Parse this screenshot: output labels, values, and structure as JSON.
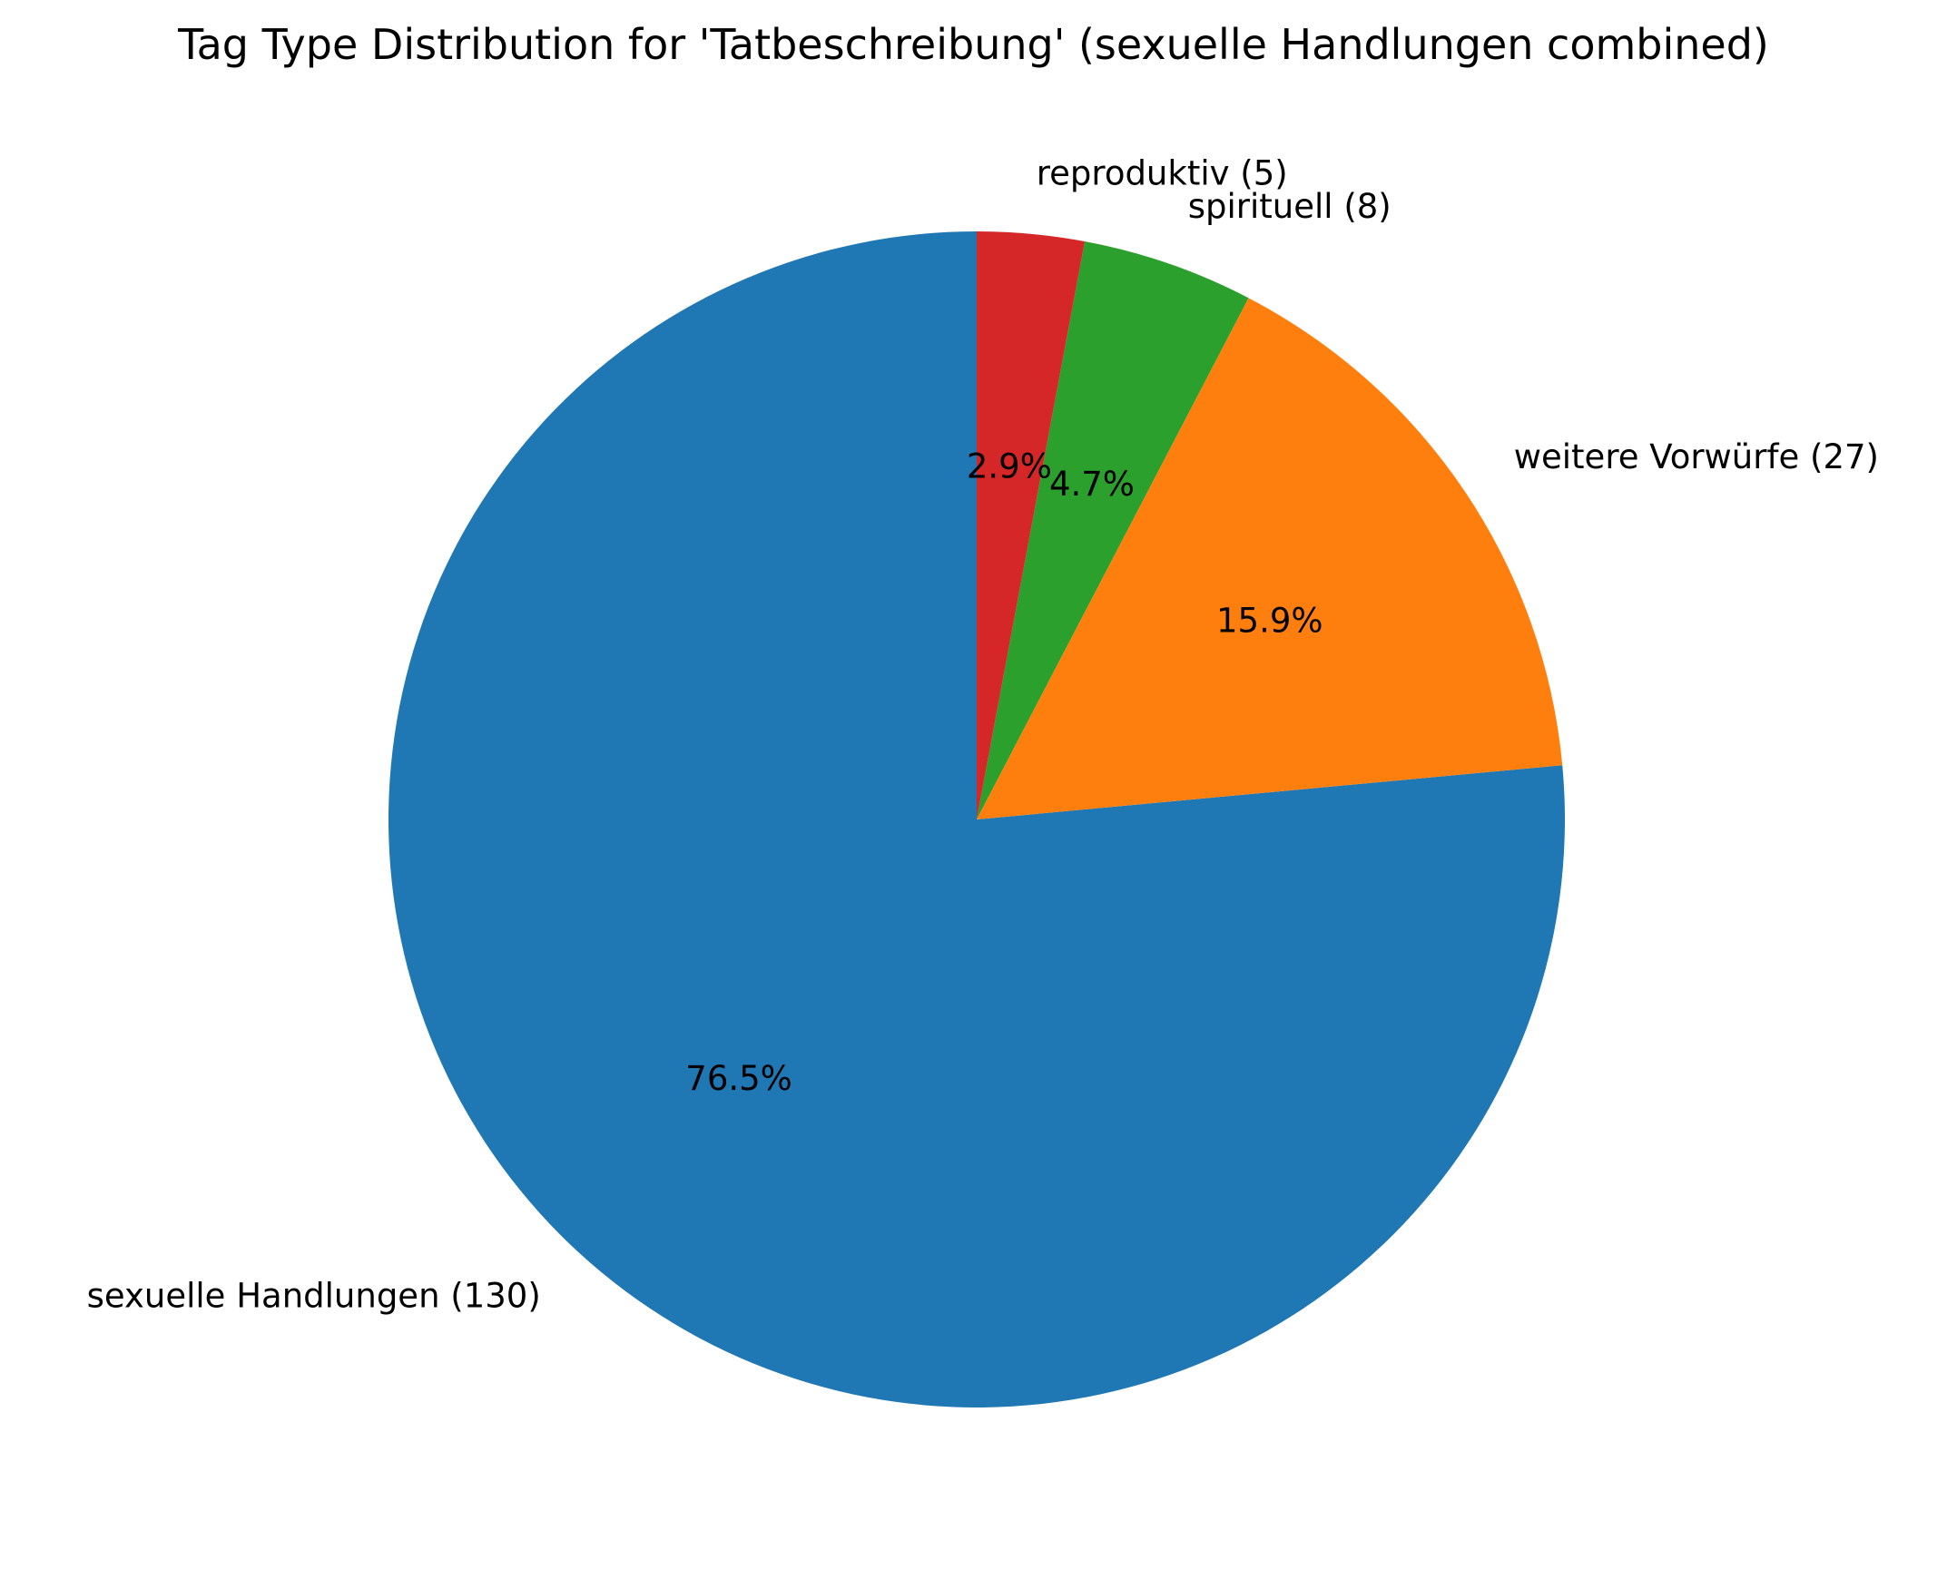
{
  "chart_data": {
    "type": "pie",
    "title": "Tag Type Distribution for 'Tatbeschreibung' (sexuelle Handlungen combined)",
    "start_angle_deg": 90,
    "direction": "counterclockwise",
    "slices": [
      {
        "label": "sexuelle Handlungen (130)",
        "value": 130,
        "percent_label": "76.5%",
        "color": "#1f77b4"
      },
      {
        "label": "weitere Vorwürfe (27)",
        "value": 27,
        "percent_label": "15.9%",
        "color": "#ff7f0e"
      },
      {
        "label": "spirituell (8)",
        "value": 8,
        "percent_label": "4.7%",
        "color": "#2ca02c"
      },
      {
        "label": "reproduktiv (5)",
        "value": 5,
        "percent_label": "2.9%",
        "color": "#d62728"
      }
    ]
  }
}
